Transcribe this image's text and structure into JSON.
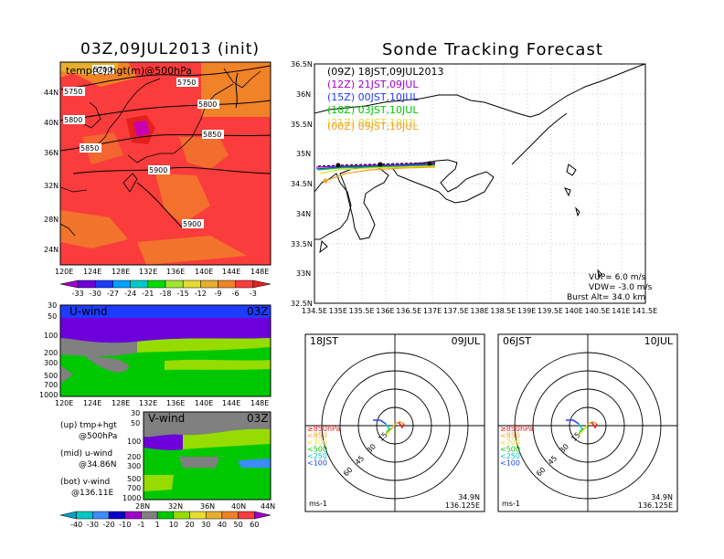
{
  "left_title": "03Z,09JUL2013 (init)",
  "right_title": "Sonde Tracking Forecast",
  "top_map": {
    "field_label": "temp(C),hgt(m)@500hPa",
    "lat_ticks": [
      "44N",
      "40N",
      "36N",
      "32N",
      "28N",
      "24N"
    ],
    "lon_ticks": [
      "120E",
      "124E",
      "128E",
      "132E",
      "136E",
      "140E",
      "144E",
      "148E"
    ],
    "contour_labels": [
      "5700",
      "5750",
      "5750",
      "5800",
      "5800",
      "5850",
      "5850",
      "5900",
      "5900"
    ],
    "colorbar": [
      "-33",
      "-30",
      "-27",
      "-24",
      "-21",
      "-18",
      "-15",
      "-12",
      "-9",
      "-6",
      "-3"
    ],
    "colorbar_colors": [
      "#a000c8",
      "#6e00dc",
      "#1e3cff",
      "#00a0ff",
      "#00c8c8",
      "#00dc00",
      "#a0e632",
      "#e6dc32",
      "#e6af2d",
      "#f08228",
      "#fa3c3c",
      "#e61e1e"
    ]
  },
  "u_panel": {
    "title": "U-wind",
    "time": "03Z",
    "y_ticks": [
      "30",
      "50",
      "100",
      "200",
      "300",
      "500",
      "700",
      "1000"
    ],
    "x_ticks": [
      "120E",
      "124E",
      "128E",
      "132E",
      "136E",
      "140E",
      "144E",
      "148E"
    ]
  },
  "v_panel": {
    "title": "V-wind",
    "time": "03Z",
    "y_ticks": [
      "30",
      "50",
      "100",
      "200",
      "300",
      "500",
      "700",
      "1000"
    ],
    "x_ticks": [
      "28N",
      "32N",
      "36N",
      "40N",
      "44N"
    ],
    "colorbar": [
      "-40",
      "-30",
      "-20",
      "-10",
      "-1",
      "1",
      "10",
      "20",
      "30",
      "40",
      "50",
      "60"
    ],
    "colorbar_colors": [
      "#00a0c8",
      "#00c8c8",
      "#3c8cff",
      "#0000c8",
      "#a000c8",
      "#808080",
      "#00c800",
      "#96dc00",
      "#e6dc32",
      "#e6af2d",
      "#f08228",
      "#fa3c3c",
      "#a000c8"
    ]
  },
  "legend_notes": [
    {
      "line1": "(up) tmp+hgt",
      "line2": "@500hPa"
    },
    {
      "line1": "(mid) u-wind",
      "line2": "@34.86N"
    },
    {
      "line1": "(bot) v-wind",
      "line2": "@136.11E"
    }
  ],
  "track_map": {
    "lat_ticks": [
      "36.5N",
      "36N",
      "35.5N",
      "35N",
      "34.5N",
      "34N",
      "33.5N",
      "33N",
      "32.5N"
    ],
    "lon_ticks": [
      "134.5E",
      "135E",
      "135.5E",
      "136E",
      "136.5E",
      "137E",
      "137.5E",
      "138E",
      "138.5E",
      "139E",
      "139.5E",
      "140E",
      "140.5E",
      "141E",
      "141.5E"
    ],
    "launches": [
      {
        "text": "(09Z)  18JST,09JUL2013",
        "color": "#000000"
      },
      {
        "text": "(12Z)  21JST,09JUL",
        "color": "#a000c8"
      },
      {
        "text": "(15Z)  00JST,10JUL",
        "color": "#1e3cff"
      },
      {
        "text": "(18Z)  03JST,10JUL",
        "color": "#00c800"
      },
      {
        "text": "(21Z)  06JST,10JUL",
        "color": "#e6dc32"
      },
      {
        "text": "(00Z)  09JST,10JUL",
        "color": "#f0a028"
      }
    ],
    "params": [
      "VUP=  6.0  m/s",
      "VDW= -3.0  m/s",
      "Burst Alt=  34.0  km"
    ]
  },
  "polar_left": {
    "jst": "18JST",
    "date": "09JUL",
    "ring_labels": [
      "15",
      "30",
      "45",
      "60"
    ],
    "levels": [
      {
        "text": "≥850hPa",
        "color": "#e61e1e"
      },
      {
        "text": "<850",
        "color": "#f0a028"
      },
      {
        "text": "<700",
        "color": "#e6dc32"
      },
      {
        "text": "<500",
        "color": "#00c800"
      },
      {
        "text": "<250",
        "color": "#00c8c8"
      },
      {
        "text": "<100",
        "color": "#1e3cff"
      }
    ],
    "unit": "ms-1",
    "lat": "34.9N",
    "lon": "136.125E"
  },
  "polar_right": {
    "jst": "06JST",
    "date": "10JUL",
    "ring_labels": [
      "15",
      "30",
      "45",
      "60"
    ],
    "levels": [
      {
        "text": "≥850hPa",
        "color": "#e61e1e"
      },
      {
        "text": "<850",
        "color": "#f0a028"
      },
      {
        "text": "<700",
        "color": "#e6dc32"
      },
      {
        "text": "<500",
        "color": "#00c800"
      },
      {
        "text": "<250",
        "color": "#00c8c8"
      },
      {
        "text": "<100",
        "color": "#1e3cff"
      }
    ],
    "unit": "ms-1",
    "lat": "34.9N",
    "lon": "136.125E"
  }
}
